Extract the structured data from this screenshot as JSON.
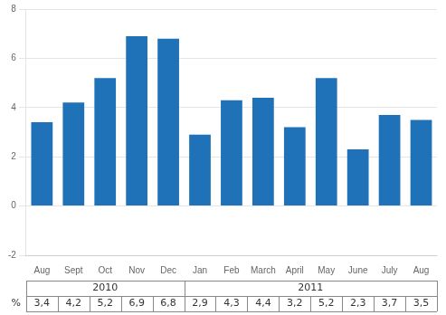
{
  "chart_data": {
    "type": "bar",
    "categories": [
      "Aug",
      "Sept",
      "Oct",
      "Nov",
      "Dec",
      "Jan",
      "Feb",
      "March",
      "April",
      "May",
      "June",
      "July",
      "Aug"
    ],
    "values": [
      3.4,
      4.2,
      5.2,
      6.9,
      6.8,
      2.9,
      4.3,
      4.4,
      3.2,
      5.2,
      2.3,
      3.7,
      3.5
    ],
    "value_labels": [
      "3,4",
      "4,2",
      "5,2",
      "6,9",
      "6,8",
      "2,9",
      "4,3",
      "4,4",
      "3,2",
      "5,2",
      "2,3",
      "3,7",
      "3,5"
    ],
    "data_labels": true,
    "color": "#1F72B8",
    "ylim": [
      -2,
      8
    ],
    "yticks": [
      -2,
      0,
      2,
      4,
      6,
      8
    ],
    "grid": true,
    "annotations": [
      {
        "text": "2010",
        "from": 0,
        "to": 4
      },
      {
        "text": "2011",
        "from": 5,
        "to": 12
      },
      {
        "text": "%"
      }
    ]
  }
}
